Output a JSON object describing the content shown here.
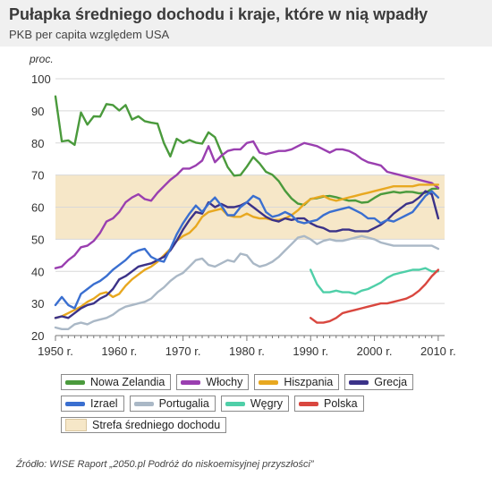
{
  "header": {
    "title": "Pułapka średniego dochodu i kraje, które w nią wpadły",
    "subtitle": "PKB per capita względem USA"
  },
  "source": "Źródło: WISE Raport „2050.pl Podróż do niskoemisyjnej przyszłości”",
  "chart_data": {
    "type": "line",
    "title": "Pułapka średniego dochodu i kraje, które w nią wpadły",
    "subtitle": "PKB per capita względem USA",
    "ylabel": "proc.",
    "xlabel": "",
    "xlim": [
      1950,
      2011
    ],
    "ylim": [
      20,
      100
    ],
    "yticks": [
      20,
      30,
      40,
      50,
      60,
      70,
      80,
      90,
      100
    ],
    "xticks": [
      1950,
      1960,
      1970,
      1980,
      1990,
      2000,
      2010
    ],
    "xtick_labels": [
      "1950 r.",
      "1960 r.",
      "1970 r.",
      "1980 r.",
      "1990 r.",
      "2000 r.",
      "2010 r."
    ],
    "grid": true,
    "legend_position": "bottom",
    "band": {
      "name": "Strefa średniego dochodu",
      "from": 50,
      "to": 70,
      "color": "#f6e7c8"
    },
    "series": [
      {
        "name": "Nowa Zelandia",
        "color": "#4a9a3c",
        "start": 1950,
        "values": [
          94.5,
          80.5,
          80.8,
          79.4,
          89.5,
          85.7,
          88.3,
          88.2,
          92.1,
          91.8,
          90.1,
          91.8,
          87.3,
          88.3,
          86.8,
          86.3,
          86.0,
          80.0,
          75.8,
          81.3,
          80.0,
          80.9,
          80.1,
          79.8,
          83.3,
          81.8,
          77.0,
          72.5,
          69.8,
          70.0,
          72.6,
          75.6,
          73.6,
          71.0,
          70.1,
          68.1,
          65.1,
          62.7,
          61.1,
          60.7,
          62.6,
          62.8,
          63.3,
          63.5,
          63.1,
          62.5,
          62.0,
          62.1,
          61.4,
          61.6,
          62.9,
          64.0,
          64.4,
          64.8,
          64.5,
          64.8,
          64.7,
          64.3,
          64.5,
          65.7,
          65.8
        ]
      },
      {
        "name": "Włochy",
        "color": "#9a3fb0",
        "start": 1950,
        "values": [
          41.0,
          41.5,
          43.5,
          45.0,
          47.5,
          48.0,
          49.5,
          52.0,
          55.5,
          56.5,
          58.5,
          61.5,
          63.0,
          64.0,
          62.5,
          62.0,
          64.5,
          66.5,
          68.5,
          70.0,
          72.0,
          72.0,
          73.0,
          74.5,
          79.0,
          74.0,
          76.0,
          77.5,
          78.0,
          78.0,
          80.0,
          80.5,
          77.0,
          76.5,
          77.0,
          77.5,
          77.5,
          78.0,
          79.0,
          80.0,
          79.5,
          79.0,
          78.0,
          77.0,
          78.0,
          78.0,
          77.5,
          76.5,
          75.0,
          74.0,
          73.5,
          73.0,
          71.0,
          70.5,
          70.0,
          69.5,
          69.0,
          68.5,
          68.0,
          67.5,
          66.0
        ]
      },
      {
        "name": "Hiszpania",
        "color": "#e8a820",
        "start": 1950,
        "values": [
          25.5,
          26.0,
          27.0,
          28.0,
          29.0,
          30.5,
          31.5,
          33.0,
          33.5,
          32.0,
          33.0,
          35.5,
          37.5,
          39.0,
          40.5,
          41.5,
          43.0,
          45.0,
          47.0,
          49.5,
          51.0,
          52.0,
          54.0,
          57.0,
          58.5,
          59.0,
          59.5,
          57.5,
          57.0,
          57.0,
          58.0,
          57.0,
          56.5,
          56.5,
          56.0,
          56.0,
          56.5,
          57.5,
          59.0,
          61.0,
          62.5,
          63.0,
          63.5,
          62.5,
          62.0,
          62.5,
          63.0,
          63.5,
          64.0,
          64.5,
          65.0,
          65.5,
          66.0,
          66.5,
          66.5,
          66.5,
          66.5,
          67.0,
          67.0,
          67.0,
          67.0
        ]
      },
      {
        "name": "Grecja",
        "color": "#3b3288",
        "start": 1950,
        "values": [
          25.5,
          26.0,
          25.5,
          27.0,
          28.5,
          29.5,
          30.0,
          31.5,
          32.5,
          34.5,
          37.5,
          38.5,
          40.0,
          41.5,
          42.0,
          42.5,
          43.5,
          44.5,
          46.5,
          49.5,
          53.0,
          56.0,
          58.5,
          58.0,
          61.5,
          60.0,
          61.0,
          60.0,
          60.0,
          60.5,
          61.5,
          60.0,
          58.5,
          57.0,
          56.0,
          55.5,
          56.5,
          56.0,
          56.5,
          56.5,
          55.0,
          54.0,
          53.5,
          52.5,
          52.5,
          53.0,
          53.0,
          52.5,
          52.5,
          52.5,
          53.5,
          54.5,
          56.0,
          58.0,
          59.5,
          61.0,
          61.5,
          63.0,
          65.0,
          64.0,
          56.5
        ]
      },
      {
        "name": "Izrael",
        "color": "#3a6fd0",
        "start": 1950,
        "values": [
          29.5,
          32.0,
          29.5,
          28.5,
          33.0,
          34.5,
          36.0,
          37.0,
          38.5,
          40.5,
          42.0,
          43.5,
          45.5,
          46.5,
          47.0,
          44.5,
          43.5,
          43.0,
          47.0,
          51.5,
          55.0,
          58.0,
          60.5,
          58.5,
          61.0,
          63.0,
          60.5,
          57.5,
          57.5,
          60.0,
          61.5,
          63.5,
          62.5,
          58.5,
          57.0,
          57.5,
          58.5,
          57.5,
          55.5,
          55.0,
          55.5,
          56.0,
          57.5,
          58.5,
          59.0,
          59.5,
          60.0,
          59.0,
          58.0,
          56.5,
          56.5,
          55.0,
          56.0,
          55.5,
          56.5,
          57.5,
          58.5,
          61.0,
          63.5,
          65.0,
          63.0
        ]
      },
      {
        "name": "Portugalia",
        "color": "#aab8c6",
        "start": 1950,
        "values": [
          22.5,
          22.0,
          22.0,
          23.5,
          24.0,
          23.5,
          24.5,
          25.0,
          25.5,
          26.5,
          28.0,
          29.0,
          29.5,
          30.0,
          30.5,
          31.5,
          33.5,
          35.0,
          37.0,
          38.5,
          39.5,
          41.5,
          43.5,
          44.0,
          42.0,
          41.5,
          42.5,
          43.5,
          43.0,
          45.5,
          45.0,
          42.5,
          41.5,
          42.0,
          43.0,
          44.5,
          46.5,
          48.5,
          50.5,
          51.0,
          50.0,
          48.5,
          49.5,
          50.0,
          49.5,
          49.5,
          50.0,
          50.5,
          51.0,
          50.5,
          50.0,
          49.0,
          48.5,
          48.0,
          48.0,
          48.0,
          48.0,
          48.0,
          48.0,
          48.0,
          47.0
        ]
      },
      {
        "name": "Węgry",
        "color": "#4fcfa8",
        "start": 1990,
        "values": [
          40.5,
          36.0,
          33.5,
          33.5,
          34.0,
          33.5,
          33.5,
          33.0,
          34.0,
          34.5,
          35.5,
          36.5,
          38.0,
          39.0,
          39.5,
          40.0,
          40.5,
          40.5,
          41.0,
          40.0,
          40.0
        ]
      },
      {
        "name": "Polska",
        "color": "#d9473f",
        "start": 1990,
        "values": [
          25.5,
          24.0,
          24.0,
          24.5,
          25.5,
          27.0,
          27.5,
          28.0,
          28.5,
          29.0,
          29.5,
          30.0,
          30.0,
          30.5,
          31.0,
          31.5,
          32.5,
          34.0,
          36.0,
          38.5,
          40.5
        ]
      }
    ]
  },
  "legend": {
    "row1": [
      "Nowa Zelandia",
      "Włochy",
      "Hiszpania",
      "Grecja"
    ],
    "row2": [
      "Izrael",
      "Portugalia",
      "Węgry",
      "Polska"
    ],
    "row3": [
      "Strefa średniego dochodu"
    ]
  }
}
